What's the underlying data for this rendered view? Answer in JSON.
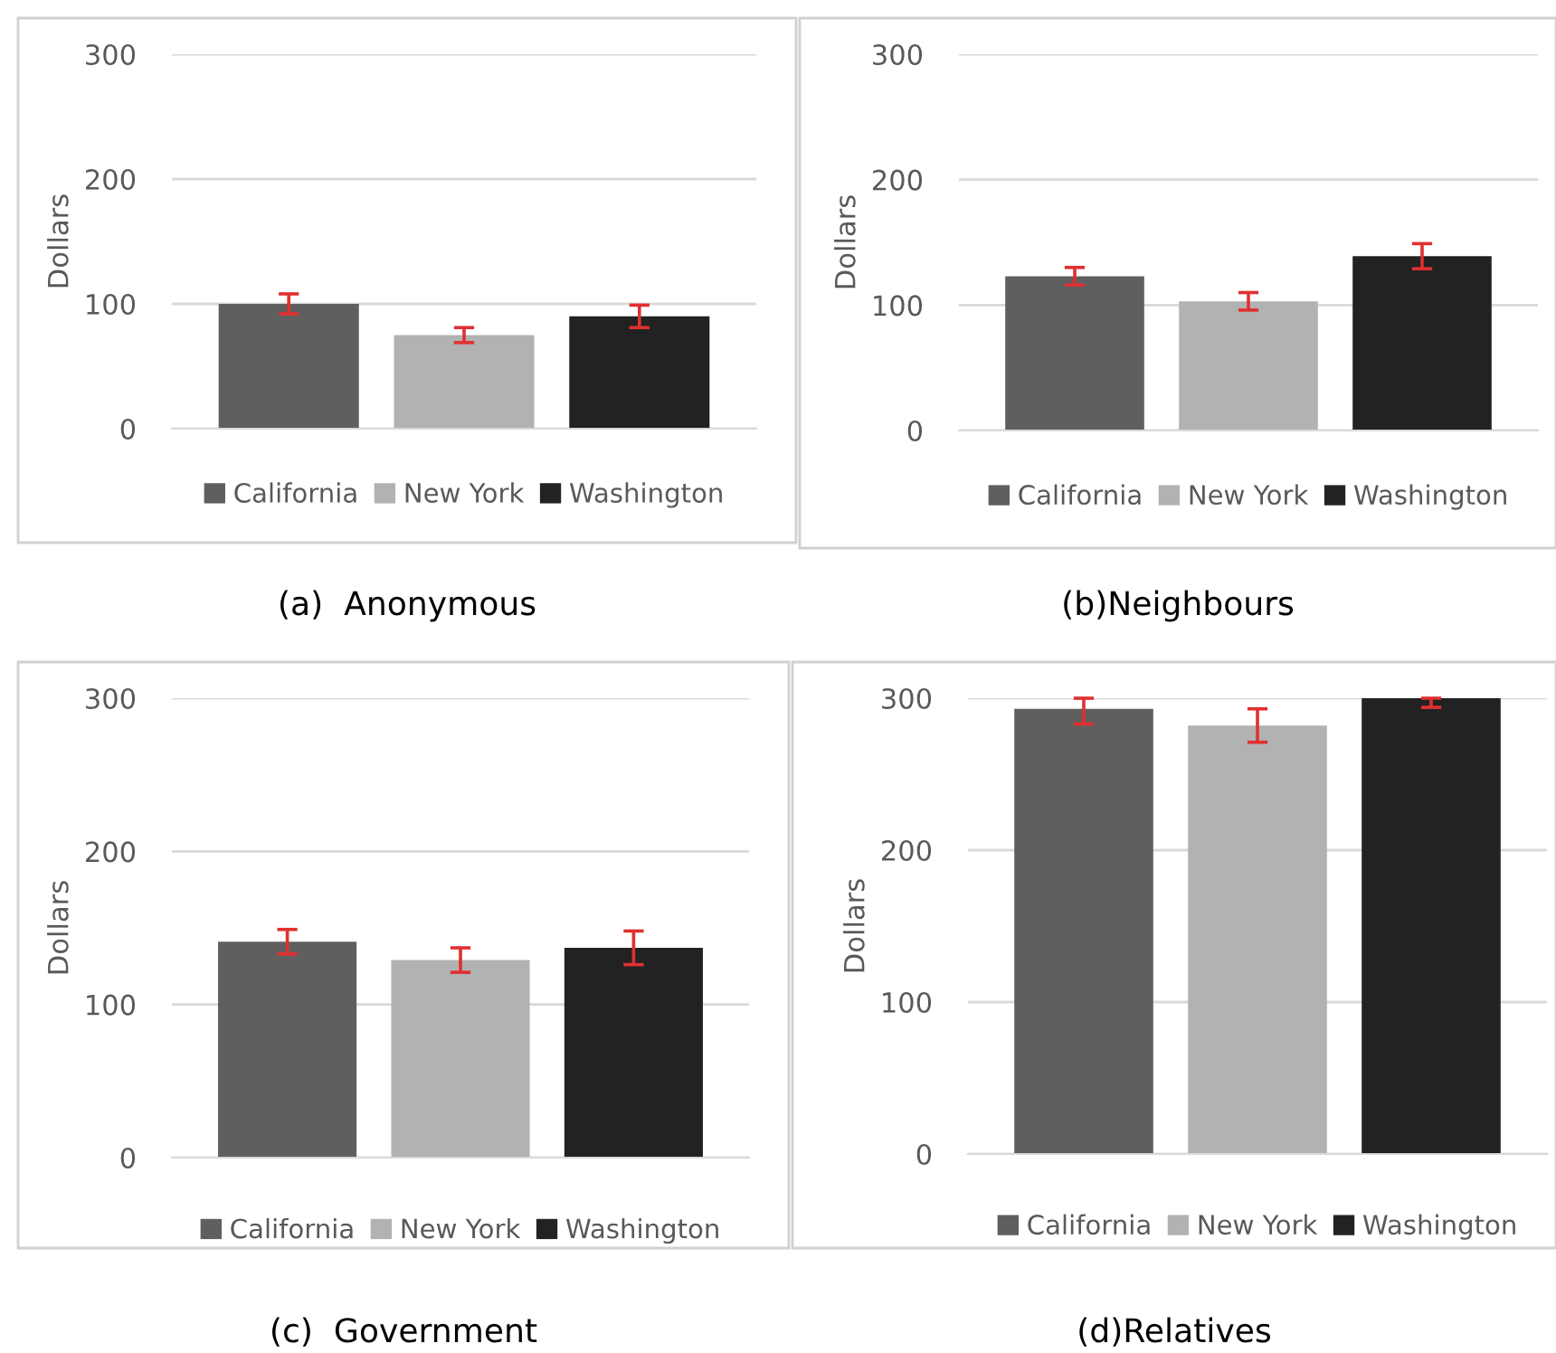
{
  "chart_data": [
    {
      "type": "bar",
      "title": "(a)  Anonymous",
      "ylabel": "Dollars",
      "categories": [
        null
      ],
      "ylim": [
        0,
        300
      ],
      "yticks": [
        0,
        100,
        200,
        300
      ],
      "grid": "y",
      "legend": "bottom",
      "series": [
        {
          "name": "California",
          "color": "#5f5f5f",
          "values": [
            100
          ],
          "errors": [
            8
          ]
        },
        {
          "name": "New York",
          "color": "#b2b2b2",
          "values": [
            75
          ],
          "errors": [
            6
          ]
        },
        {
          "name": "Washington",
          "color": "#222222",
          "values": [
            90
          ],
          "errors": [
            9
          ]
        }
      ]
    },
    {
      "type": "bar",
      "title": "(b)Neighbours",
      "ylabel": "Dollars",
      "categories": [
        null
      ],
      "ylim": [
        0,
        300
      ],
      "yticks": [
        0,
        100,
        200,
        300
      ],
      "grid": "y",
      "legend": "bottom",
      "series": [
        {
          "name": "California",
          "color": "#5f5f5f",
          "values": [
            123
          ],
          "errors": [
            7
          ]
        },
        {
          "name": "New York",
          "color": "#b2b2b2",
          "values": [
            103
          ],
          "errors": [
            7
          ]
        },
        {
          "name": "Washington",
          "color": "#222222",
          "values": [
            139
          ],
          "errors": [
            10
          ]
        }
      ]
    },
    {
      "type": "bar",
      "title": "(c)  Government",
      "ylabel": "Dollars",
      "categories": [
        null
      ],
      "ylim": [
        0,
        300
      ],
      "yticks": [
        0,
        100,
        200,
        300
      ],
      "grid": "y",
      "legend": "bottom",
      "series": [
        {
          "name": "California",
          "color": "#5f5f5f",
          "values": [
            141
          ],
          "errors": [
            8
          ]
        },
        {
          "name": "New York",
          "color": "#b2b2b2",
          "values": [
            129
          ],
          "errors": [
            8
          ]
        },
        {
          "name": "Washington",
          "color": "#222222",
          "values": [
            137
          ],
          "errors": [
            11
          ]
        }
      ]
    },
    {
      "type": "bar",
      "title": "(d)Relatives",
      "ylabel": "Dollars",
      "categories": [
        null
      ],
      "ylim": [
        0,
        300
      ],
      "yticks": [
        0,
        100,
        200,
        300
      ],
      "grid": "y",
      "legend": "bottom",
      "series": [
        {
          "name": "California",
          "color": "#5f5f5f",
          "values": [
            293
          ],
          "errors": [
            [
              283,
              300
            ]
          ]
        },
        {
          "name": "New York",
          "color": "#b2b2b2",
          "values": [
            282
          ],
          "errors": [
            [
              271,
              293
            ]
          ]
        },
        {
          "name": "Washington",
          "color": "#222222",
          "values": [
            300
          ],
          "errors": [
            [
              294,
              300
            ]
          ]
        }
      ]
    }
  ]
}
